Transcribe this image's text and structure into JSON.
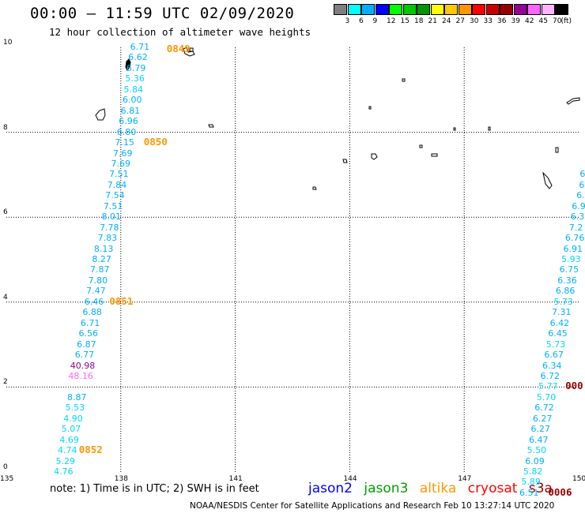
{
  "header": {
    "title": "00:00 – 11:59 UTC 02/09/2020",
    "subtitle": "12 hour collection of altimeter wave heights"
  },
  "color_scale": {
    "unit_label": "(ft)",
    "bins": [
      {
        "label": "",
        "color": "#7f7f7f"
      },
      {
        "label": "3",
        "color": "#00ffff"
      },
      {
        "label": "6",
        "color": "#00b0ff"
      },
      {
        "label": "9",
        "color": "#0000ff"
      },
      {
        "label": "12",
        "color": "#00ff00"
      },
      {
        "label": "15",
        "color": "#00c800"
      },
      {
        "label": "18",
        "color": "#009600"
      },
      {
        "label": "21",
        "color": "#ffff00"
      },
      {
        "label": "24",
        "color": "#ffc800"
      },
      {
        "label": "27",
        "color": "#ff9600"
      },
      {
        "label": "30",
        "color": "#ff0000"
      },
      {
        "label": "33",
        "color": "#c80000"
      },
      {
        "label": "36",
        "color": "#960000"
      },
      {
        "label": "39",
        "color": "#960096"
      },
      {
        "label": "42",
        "color": "#ff64ff"
      },
      {
        "label": "45",
        "color": "#ffb4ff"
      },
      {
        "label": "70",
        "color": "#000000"
      }
    ]
  },
  "axes": {
    "x_ticks": [
      "135",
      "138",
      "141",
      "144",
      "147",
      "150"
    ],
    "y_ticks": [
      "0",
      "2",
      "4",
      "6",
      "8",
      "10"
    ],
    "lon_range": [
      135,
      150
    ],
    "lat_range": [
      0,
      10
    ]
  },
  "tracks": [
    {
      "satellite": "jason2/3 pass west",
      "points": [
        {
          "v": "6.71",
          "lon": 138.5,
          "lat": 10.0,
          "color": "#00b0ff"
        },
        {
          "v": "6.62",
          "lon": 138.45,
          "lat": 9.75,
          "color": "#00b0ff"
        },
        {
          "v": "6.79",
          "lon": 138.4,
          "lat": 9.5,
          "color": "#00b0ff"
        },
        {
          "v": "5.36",
          "lon": 138.37,
          "lat": 9.25,
          "color": "#00d8ff"
        },
        {
          "v": "5.84",
          "lon": 138.33,
          "lat": 9.0,
          "color": "#00d8ff"
        },
        {
          "v": "6.00",
          "lon": 138.3,
          "lat": 8.75,
          "color": "#00b0ff"
        },
        {
          "v": "6.81",
          "lon": 138.25,
          "lat": 8.5,
          "color": "#00b0ff"
        },
        {
          "v": "6.96",
          "lon": 138.2,
          "lat": 8.25,
          "color": "#00b0ff"
        },
        {
          "v": "6.80",
          "lon": 138.15,
          "lat": 8.0,
          "color": "#00b0ff"
        },
        {
          "v": "7.15",
          "lon": 138.1,
          "lat": 7.75,
          "color": "#00b0ff"
        },
        {
          "v": "7.69",
          "lon": 138.05,
          "lat": 7.5,
          "color": "#00b0ff"
        },
        {
          "v": "7.69",
          "lon": 138.0,
          "lat": 7.25,
          "color": "#00b0ff"
        },
        {
          "v": "7.51",
          "lon": 137.95,
          "lat": 7.0,
          "color": "#00b0ff"
        },
        {
          "v": "7.84",
          "lon": 137.9,
          "lat": 6.75,
          "color": "#00b0ff"
        },
        {
          "v": "7.54",
          "lon": 137.85,
          "lat": 6.5,
          "color": "#00b0ff"
        },
        {
          "v": "7.51",
          "lon": 137.8,
          "lat": 6.25,
          "color": "#00b0ff"
        },
        {
          "v": "8.01",
          "lon": 137.75,
          "lat": 6.0,
          "color": "#00b0ff"
        },
        {
          "v": "7.78",
          "lon": 137.7,
          "lat": 5.75,
          "color": "#00b0ff"
        },
        {
          "v": "7.83",
          "lon": 137.65,
          "lat": 5.5,
          "color": "#00b0ff"
        },
        {
          "v": "8.13",
          "lon": 137.55,
          "lat": 5.25,
          "color": "#00b0ff"
        },
        {
          "v": "8.27",
          "lon": 137.5,
          "lat": 5.0,
          "color": "#00b0ff"
        },
        {
          "v": "7.87",
          "lon": 137.45,
          "lat": 4.75,
          "color": "#00b0ff"
        },
        {
          "v": "7.80",
          "lon": 137.4,
          "lat": 4.5,
          "color": "#00b0ff"
        },
        {
          "v": "7.47",
          "lon": 137.35,
          "lat": 4.25,
          "color": "#00b0ff"
        },
        {
          "v": "6.46",
          "lon": 137.3,
          "lat": 4.0,
          "color": "#00b0ff"
        },
        {
          "v": "6.88",
          "lon": 137.25,
          "lat": 3.75,
          "color": "#00b0ff"
        },
        {
          "v": "6.71",
          "lon": 137.2,
          "lat": 3.5,
          "color": "#00b0ff"
        },
        {
          "v": "6.56",
          "lon": 137.15,
          "lat": 3.25,
          "color": "#00b0ff"
        },
        {
          "v": "6.87",
          "lon": 137.1,
          "lat": 3.0,
          "color": "#00b0ff"
        },
        {
          "v": "6.77",
          "lon": 137.05,
          "lat": 2.75,
          "color": "#00b0ff"
        },
        {
          "v": "40.98",
          "lon": 137.0,
          "lat": 2.5,
          "color": "#960096"
        },
        {
          "v": "48.16",
          "lon": 136.95,
          "lat": 2.25,
          "color": "#ff64ff"
        },
        {
          "v": "8.87",
          "lon": 136.85,
          "lat": 1.75,
          "color": "#00b0ff"
        },
        {
          "v": "5.53",
          "lon": 136.8,
          "lat": 1.5,
          "color": "#00d8ff"
        },
        {
          "v": "4.90",
          "lon": 136.75,
          "lat": 1.25,
          "color": "#00d8ff"
        },
        {
          "v": "5.07",
          "lon": 136.7,
          "lat": 1.0,
          "color": "#00d8ff"
        },
        {
          "v": "4.69",
          "lon": 136.65,
          "lat": 0.75,
          "color": "#00d8ff"
        },
        {
          "v": "4.74",
          "lon": 136.6,
          "lat": 0.5,
          "color": "#00d8ff"
        },
        {
          "v": "5.29",
          "lon": 136.55,
          "lat": 0.25,
          "color": "#00d8ff"
        },
        {
          "v": "4.76",
          "lon": 136.5,
          "lat": 0.0,
          "color": "#00d8ff"
        }
      ]
    },
    {
      "satellite": "jason2/3 pass east",
      "points": [
        {
          "v": "6",
          "lon": 150.1,
          "lat": 7.0,
          "color": "#00b0ff"
        },
        {
          "v": "6",
          "lon": 150.08,
          "lat": 6.75,
          "color": "#00b0ff"
        },
        {
          "v": "6.",
          "lon": 150.05,
          "lat": 6.5,
          "color": "#00b0ff"
        },
        {
          "v": "6.9",
          "lon": 150.0,
          "lat": 6.25,
          "color": "#00b0ff"
        },
        {
          "v": "6.3",
          "lon": 149.97,
          "lat": 6.0,
          "color": "#00b0ff"
        },
        {
          "v": "7.2",
          "lon": 149.93,
          "lat": 5.75,
          "color": "#00b0ff"
        },
        {
          "v": "6.76",
          "lon": 149.9,
          "lat": 5.5,
          "color": "#00b0ff"
        },
        {
          "v": "6.91",
          "lon": 149.85,
          "lat": 5.25,
          "color": "#00b0ff"
        },
        {
          "v": "5.93",
          "lon": 149.8,
          "lat": 5.0,
          "color": "#00d8ff"
        },
        {
          "v": "6.75",
          "lon": 149.75,
          "lat": 4.75,
          "color": "#00b0ff"
        },
        {
          "v": "6.36",
          "lon": 149.7,
          "lat": 4.5,
          "color": "#00b0ff"
        },
        {
          "v": "6.86",
          "lon": 149.65,
          "lat": 4.25,
          "color": "#00b0ff"
        },
        {
          "v": "5.73",
          "lon": 149.6,
          "lat": 4.0,
          "color": "#00d8ff"
        },
        {
          "v": "7.31",
          "lon": 149.55,
          "lat": 3.75,
          "color": "#00b0ff"
        },
        {
          "v": "6.42",
          "lon": 149.5,
          "lat": 3.5,
          "color": "#00b0ff"
        },
        {
          "v": "6.45",
          "lon": 149.45,
          "lat": 3.25,
          "color": "#00b0ff"
        },
        {
          "v": "5.73",
          "lon": 149.4,
          "lat": 3.0,
          "color": "#00d8ff"
        },
        {
          "v": "6.67",
          "lon": 149.35,
          "lat": 2.75,
          "color": "#00b0ff"
        },
        {
          "v": "6.34",
          "lon": 149.3,
          "lat": 2.5,
          "color": "#00b0ff"
        },
        {
          "v": "6.72",
          "lon": 149.25,
          "lat": 2.25,
          "color": "#00b0ff"
        },
        {
          "v": "5.77",
          "lon": 149.2,
          "lat": 2.0,
          "color": "#00d8ff"
        },
        {
          "v": "5.70",
          "lon": 149.15,
          "lat": 1.75,
          "color": "#00d8ff"
        },
        {
          "v": "6.72",
          "lon": 149.1,
          "lat": 1.5,
          "color": "#00b0ff"
        },
        {
          "v": "6.27",
          "lon": 149.05,
          "lat": 1.25,
          "color": "#00b0ff"
        },
        {
          "v": "6.27",
          "lon": 149.0,
          "lat": 1.0,
          "color": "#00b0ff"
        },
        {
          "v": "6.47",
          "lon": 148.95,
          "lat": 0.75,
          "color": "#00b0ff"
        },
        {
          "v": "5.50",
          "lon": 148.9,
          "lat": 0.5,
          "color": "#00d8ff"
        },
        {
          "v": "6.09",
          "lon": 148.85,
          "lat": 0.25,
          "color": "#00b0ff"
        },
        {
          "v": "5.82",
          "lon": 148.8,
          "lat": 0.0,
          "color": "#00d8ff"
        },
        {
          "v": "5.89",
          "lon": 148.75,
          "lat": -0.25,
          "color": "#00d8ff"
        },
        {
          "v": "6.51",
          "lon": 148.7,
          "lat": -0.5,
          "color": "#00b0ff"
        }
      ]
    }
  ],
  "time_labels": [
    {
      "text": "0849",
      "color": "#ff9600",
      "lon": 139.2,
      "lat": 9.95
    },
    {
      "text": "0850",
      "color": "#ff9600",
      "lon": 138.6,
      "lat": 7.75
    },
    {
      "text": "0851",
      "color": "#ff9600",
      "lon": 137.7,
      "lat": 4.0
    },
    {
      "text": "0852",
      "color": "#ff9600",
      "lon": 136.9,
      "lat": 0.5
    },
    {
      "text": "000",
      "color": "#960000",
      "lon": 149.65,
      "lat": 2.0
    },
    {
      "text": "0006",
      "color": "#960000",
      "lon": 149.2,
      "lat": -0.5
    }
  ],
  "footer": {
    "note": "note: 1) Time is in UTC; 2) SWH is in feet",
    "legend": [
      {
        "name": "jason2",
        "color": "#0000ff"
      },
      {
        "name": "jason3",
        "color": "#00a000"
      },
      {
        "name": "altika",
        "color": "#ff9600"
      },
      {
        "name": "cryosat",
        "color": "#ff0000"
      },
      {
        "name": "s3a",
        "color": "#960000"
      }
    ],
    "credit": "NOAA/NESDIS Center for Satellite Applications and Research    Feb 10 13:27:14 UTC 2020"
  }
}
